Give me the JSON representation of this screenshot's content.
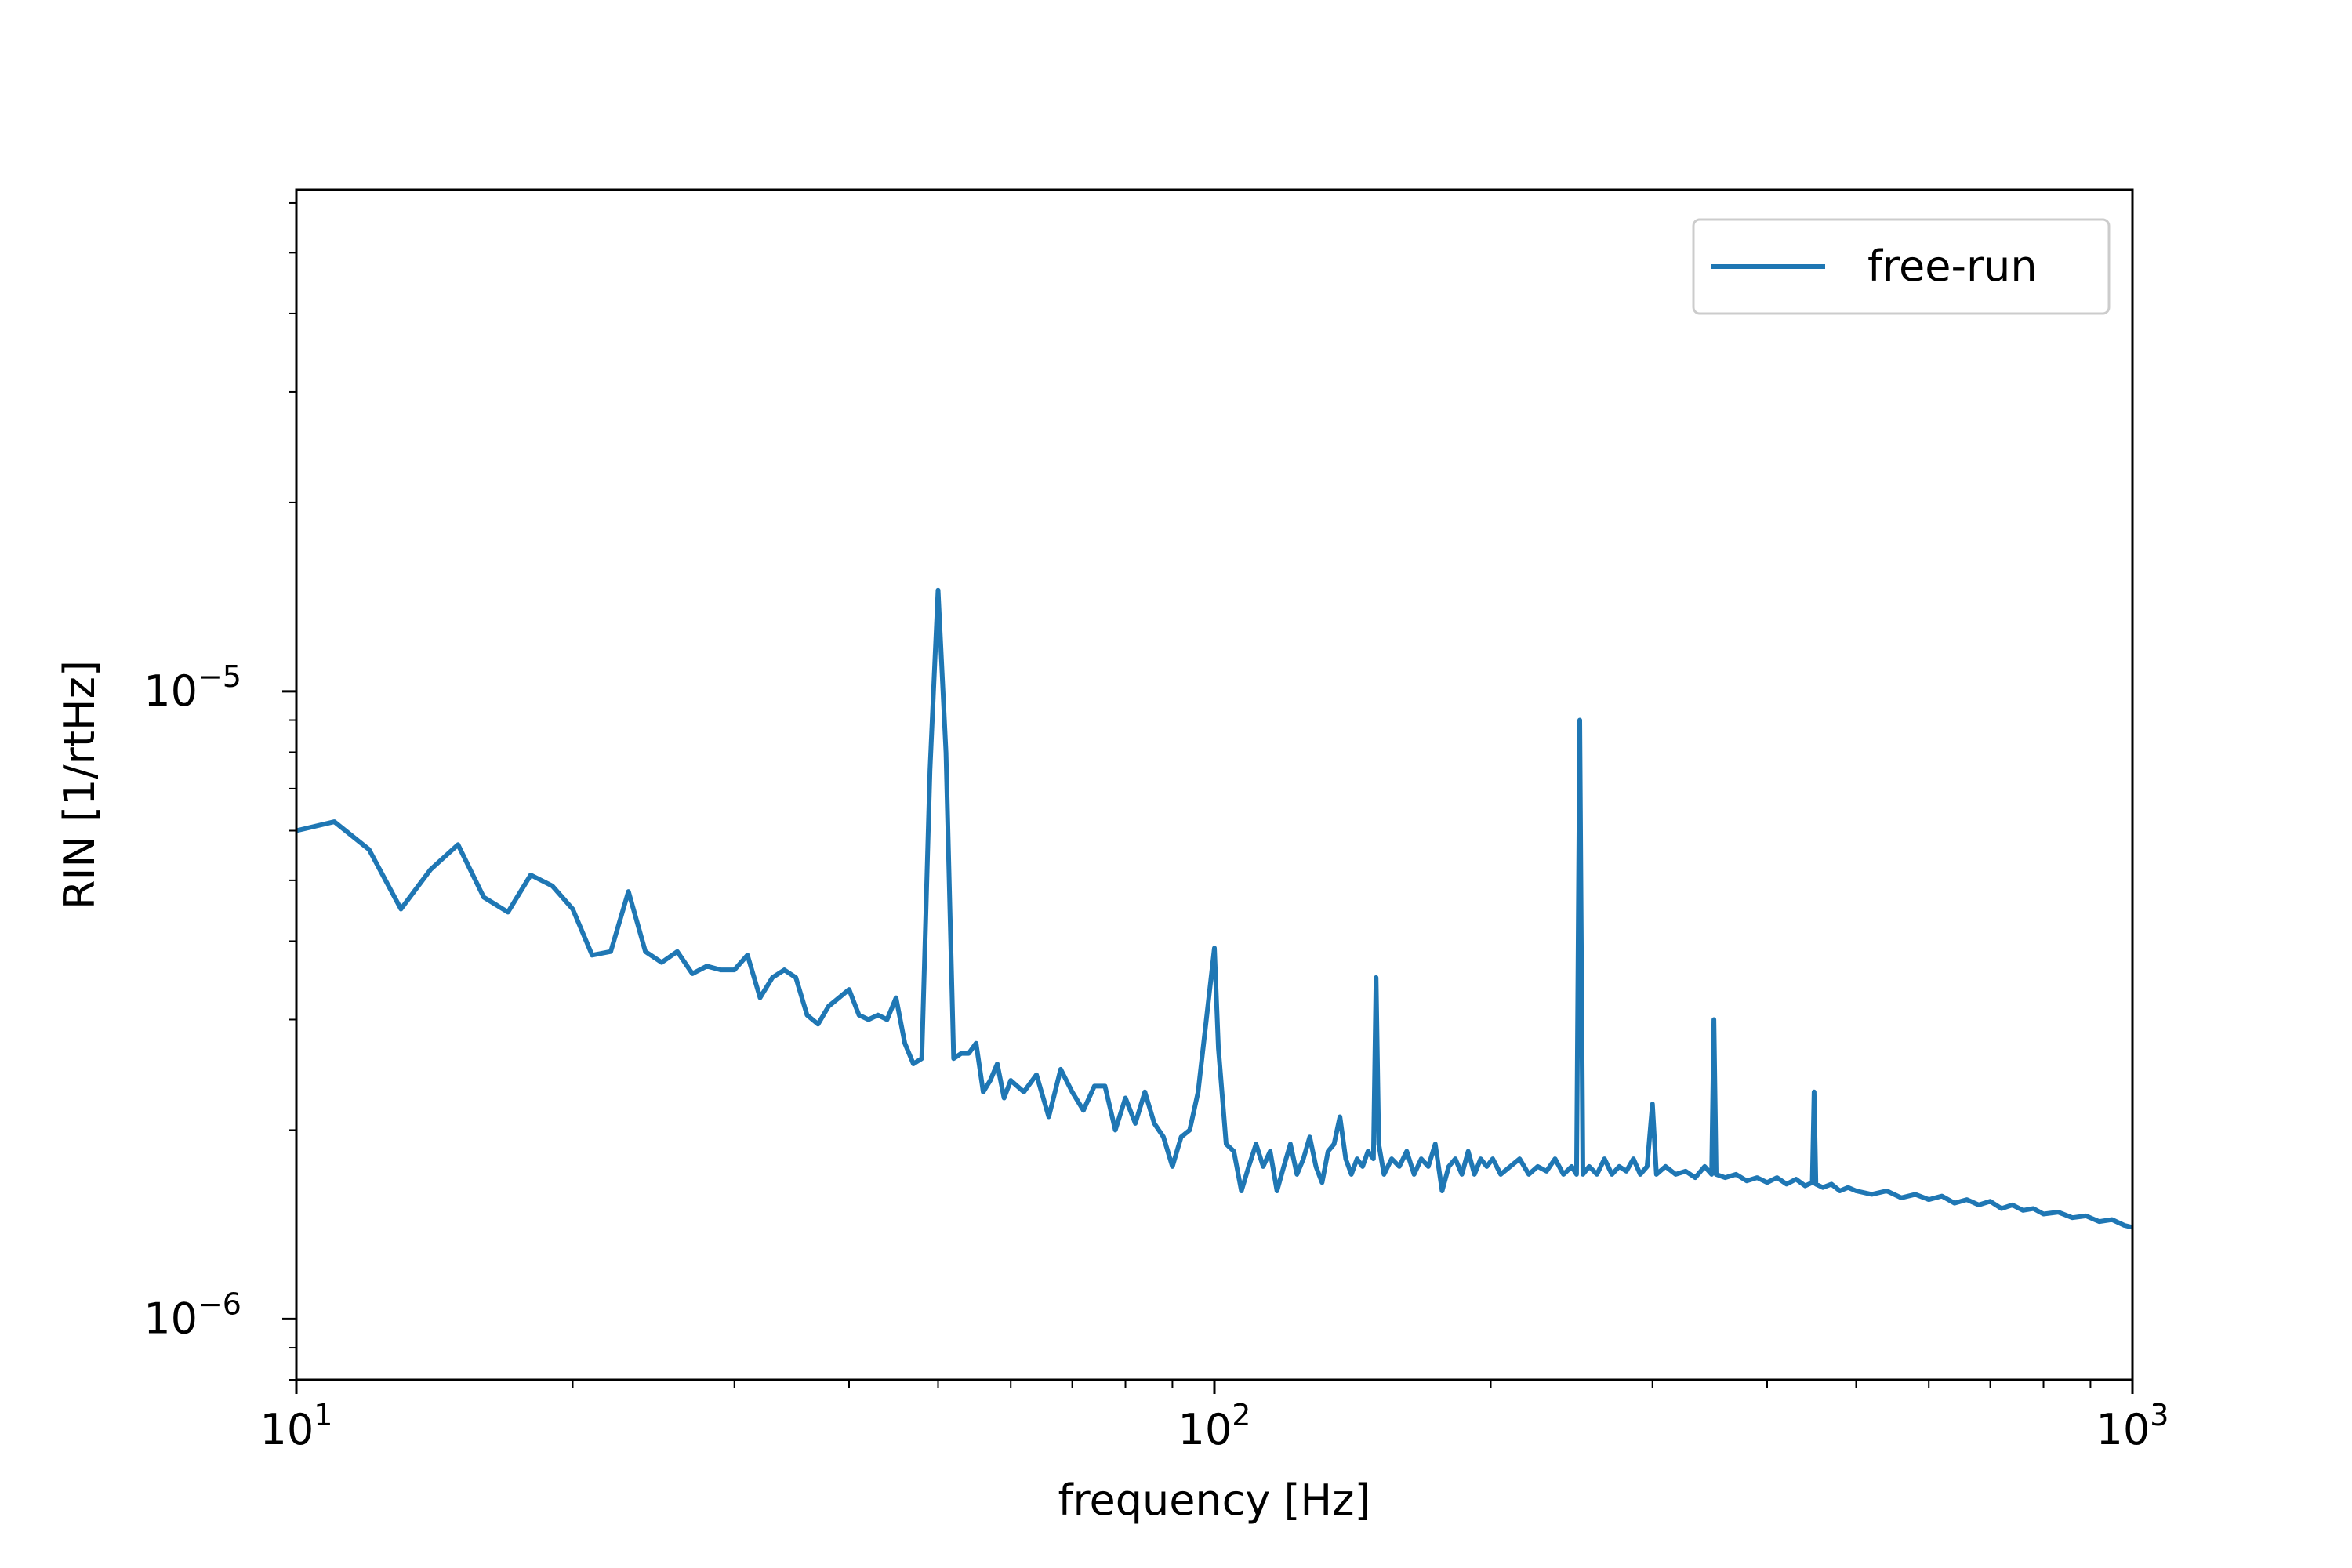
{
  "chart_data": {
    "type": "line",
    "xlabel": "frequency [Hz]",
    "ylabel": "RIN [1/rtHz]",
    "x_scale": "log",
    "y_scale": "log",
    "xlim": [
      10,
      1000
    ],
    "ylim": [
      8e-07,
      6.3e-05
    ],
    "x_ticks": [
      {
        "value": 10,
        "base": "10",
        "exp": "1"
      },
      {
        "value": 100,
        "base": "10",
        "exp": "2"
      },
      {
        "value": 1000,
        "base": "10",
        "exp": "3"
      }
    ],
    "y_ticks": [
      {
        "value": 1e-06,
        "base": "10",
        "exp": "−6"
      },
      {
        "value": 1e-05,
        "base": "10",
        "exp": "−5"
      }
    ],
    "grid": false,
    "legend": {
      "position": "top-right",
      "entries": [
        "free-run"
      ]
    },
    "colors": {
      "series": "#1f77b4",
      "axes": "#000000",
      "legend_border": "#cccccc"
    },
    "series": [
      {
        "name": "free-run",
        "points": [
          [
            10,
            6e-06
          ],
          [
            11,
            6.2e-06
          ],
          [
            12,
            5.6e-06
          ],
          [
            13,
            4.5e-06
          ],
          [
            14,
            5.2e-06
          ],
          [
            15,
            5.7e-06
          ],
          [
            16,
            4.7e-06
          ],
          [
            17,
            4.45e-06
          ],
          [
            18,
            5.1e-06
          ],
          [
            19,
            4.9e-06
          ],
          [
            20,
            4.5e-06
          ],
          [
            21,
            3.8e-06
          ],
          [
            22,
            3.85e-06
          ],
          [
            23,
            4.8e-06
          ],
          [
            24,
            3.85e-06
          ],
          [
            25,
            3.7e-06
          ],
          [
            26,
            3.85e-06
          ],
          [
            27,
            3.55e-06
          ],
          [
            28,
            3.65e-06
          ],
          [
            29,
            3.6e-06
          ],
          [
            30,
            3.6e-06
          ],
          [
            31,
            3.8e-06
          ],
          [
            32,
            3.25e-06
          ],
          [
            33,
            3.5e-06
          ],
          [
            34,
            3.6e-06
          ],
          [
            35,
            3.5e-06
          ],
          [
            36,
            3.05e-06
          ],
          [
            37,
            2.95e-06
          ],
          [
            38,
            3.15e-06
          ],
          [
            40,
            3.35e-06
          ],
          [
            41,
            3.05e-06
          ],
          [
            42,
            3e-06
          ],
          [
            43,
            3.05e-06
          ],
          [
            44,
            3e-06
          ],
          [
            45,
            3.25e-06
          ],
          [
            46,
            2.75e-06
          ],
          [
            47,
            2.55e-06
          ],
          [
            48,
            2.6e-06
          ],
          [
            49,
            7.5e-06
          ],
          [
            50,
            1.45e-05
          ],
          [
            51,
            8e-06
          ],
          [
            52,
            2.6e-06
          ],
          [
            53,
            2.65e-06
          ],
          [
            54,
            2.65e-06
          ],
          [
            55,
            2.75e-06
          ],
          [
            56,
            2.3e-06
          ],
          [
            57,
            2.4e-06
          ],
          [
            58,
            2.55e-06
          ],
          [
            59,
            2.25e-06
          ],
          [
            60,
            2.4e-06
          ],
          [
            62,
            2.3e-06
          ],
          [
            64,
            2.45e-06
          ],
          [
            66,
            2.1e-06
          ],
          [
            68,
            2.5e-06
          ],
          [
            70,
            2.3e-06
          ],
          [
            72,
            2.15e-06
          ],
          [
            74,
            2.35e-06
          ],
          [
            76,
            2.35e-06
          ],
          [
            78,
            2e-06
          ],
          [
            80,
            2.25e-06
          ],
          [
            82,
            2.05e-06
          ],
          [
            84,
            2.3e-06
          ],
          [
            86,
            2.05e-06
          ],
          [
            88,
            1.95e-06
          ],
          [
            90,
            1.75e-06
          ],
          [
            92,
            1.95e-06
          ],
          [
            94,
            2e-06
          ],
          [
            96,
            2.3e-06
          ],
          [
            98,
            3e-06
          ],
          [
            100,
            3.9e-06
          ],
          [
            101,
            2.7e-06
          ],
          [
            103,
            1.9e-06
          ],
          [
            105,
            1.85e-06
          ],
          [
            107,
            1.6e-06
          ],
          [
            109,
            1.75e-06
          ],
          [
            111,
            1.9e-06
          ],
          [
            113,
            1.75e-06
          ],
          [
            115,
            1.85e-06
          ],
          [
            117,
            1.6e-06
          ],
          [
            119,
            1.75e-06
          ],
          [
            121,
            1.9e-06
          ],
          [
            123,
            1.7e-06
          ],
          [
            125,
            1.8e-06
          ],
          [
            127,
            1.95e-06
          ],
          [
            129,
            1.75e-06
          ],
          [
            131,
            1.65e-06
          ],
          [
            133,
            1.85e-06
          ],
          [
            135,
            1.9e-06
          ],
          [
            137,
            2.1e-06
          ],
          [
            139,
            1.8e-06
          ],
          [
            141,
            1.7e-06
          ],
          [
            143,
            1.8e-06
          ],
          [
            145,
            1.75e-06
          ],
          [
            147,
            1.85e-06
          ],
          [
            149,
            1.8e-06
          ],
          [
            150,
            3.5e-06
          ],
          [
            151,
            1.9e-06
          ],
          [
            153,
            1.7e-06
          ],
          [
            156,
            1.8e-06
          ],
          [
            159,
            1.75e-06
          ],
          [
            162,
            1.85e-06
          ],
          [
            165,
            1.7e-06
          ],
          [
            168,
            1.8e-06
          ],
          [
            171,
            1.75e-06
          ],
          [
            174,
            1.9e-06
          ],
          [
            177,
            1.6e-06
          ],
          [
            180,
            1.75e-06
          ],
          [
            183,
            1.8e-06
          ],
          [
            186,
            1.7e-06
          ],
          [
            189,
            1.85e-06
          ],
          [
            192,
            1.7e-06
          ],
          [
            195,
            1.8e-06
          ],
          [
            198,
            1.75e-06
          ],
          [
            201,
            1.8e-06
          ],
          [
            205,
            1.7e-06
          ],
          [
            210,
            1.75e-06
          ],
          [
            215,
            1.8e-06
          ],
          [
            220,
            1.7e-06
          ],
          [
            225,
            1.75e-06
          ],
          [
            230,
            1.72e-06
          ],
          [
            235,
            1.8e-06
          ],
          [
            240,
            1.7e-06
          ],
          [
            245,
            1.75e-06
          ],
          [
            248,
            1.7e-06
          ],
          [
            250,
            9e-06
          ],
          [
            252,
            1.7e-06
          ],
          [
            256,
            1.75e-06
          ],
          [
            261,
            1.7e-06
          ],
          [
            266,
            1.8e-06
          ],
          [
            271,
            1.7e-06
          ],
          [
            276,
            1.75e-06
          ],
          [
            281,
            1.72e-06
          ],
          [
            286,
            1.8e-06
          ],
          [
            291,
            1.7e-06
          ],
          [
            296,
            1.75e-06
          ],
          [
            300,
            2.2e-06
          ],
          [
            303,
            1.7e-06
          ],
          [
            310,
            1.75e-06
          ],
          [
            318,
            1.7e-06
          ],
          [
            326,
            1.72e-06
          ],
          [
            334,
            1.68e-06
          ],
          [
            342,
            1.75e-06
          ],
          [
            348,
            1.7e-06
          ],
          [
            350,
            3e-06
          ],
          [
            352,
            1.7e-06
          ],
          [
            360,
            1.68e-06
          ],
          [
            370,
            1.7e-06
          ],
          [
            380,
            1.66e-06
          ],
          [
            390,
            1.68e-06
          ],
          [
            400,
            1.65e-06
          ],
          [
            410,
            1.68e-06
          ],
          [
            420,
            1.64e-06
          ],
          [
            430,
            1.67e-06
          ],
          [
            440,
            1.63e-06
          ],
          [
            448,
            1.65e-06
          ],
          [
            450,
            2.3e-06
          ],
          [
            452,
            1.64e-06
          ],
          [
            460,
            1.62e-06
          ],
          [
            470,
            1.64e-06
          ],
          [
            480,
            1.6e-06
          ],
          [
            490,
            1.62e-06
          ],
          [
            500,
            1.6e-06
          ],
          [
            520,
            1.58e-06
          ],
          [
            540,
            1.6e-06
          ],
          [
            560,
            1.56e-06
          ],
          [
            580,
            1.58e-06
          ],
          [
            600,
            1.55e-06
          ],
          [
            620,
            1.57e-06
          ],
          [
            640,
            1.53e-06
          ],
          [
            660,
            1.55e-06
          ],
          [
            680,
            1.52e-06
          ],
          [
            700,
            1.54e-06
          ],
          [
            720,
            1.5e-06
          ],
          [
            740,
            1.52e-06
          ],
          [
            760,
            1.49e-06
          ],
          [
            780,
            1.5e-06
          ],
          [
            800,
            1.47e-06
          ],
          [
            830,
            1.48e-06
          ],
          [
            860,
            1.45e-06
          ],
          [
            890,
            1.46e-06
          ],
          [
            920,
            1.43e-06
          ],
          [
            950,
            1.44e-06
          ],
          [
            980,
            1.41e-06
          ],
          [
            1000,
            1.4e-06
          ]
        ]
      }
    ]
  }
}
